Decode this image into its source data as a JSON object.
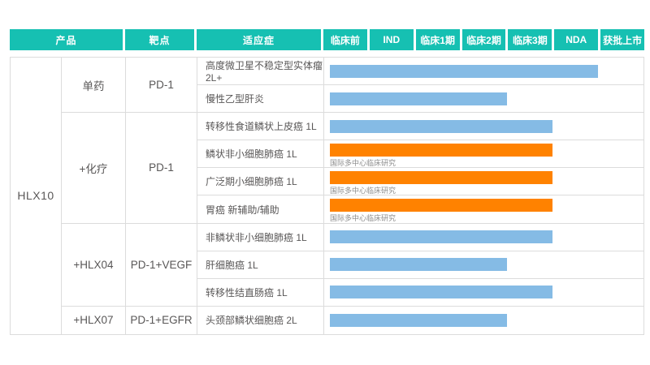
{
  "product": "HLX10",
  "header": {
    "columns": [
      "产品",
      "靶点",
      "适应症"
    ],
    "phases": [
      "临床前",
      "IND",
      "临床1期",
      "临床2期",
      "临床3期",
      "NDA",
      "获批上市"
    ]
  },
  "groups": [
    {
      "combo": "单药",
      "target": "PD-1",
      "span": 2
    },
    {
      "combo": "+化疗",
      "target": "PD-1",
      "span": 4
    },
    {
      "combo": "+HLX04",
      "target": "PD-1+VEGF",
      "span": 3
    },
    {
      "combo": "+HLX07",
      "target": "PD-1+EGFR",
      "span": 1
    }
  ],
  "rows": [
    {
      "indication": "高度微卫星不稳定型实体瘤 2L+",
      "phase_end": "NDA",
      "units": 6,
      "color": "blue",
      "note": ""
    },
    {
      "indication": "慢性乙型肝炎",
      "phase_end": "临床2期",
      "units": 4,
      "color": "blue",
      "note": ""
    },
    {
      "indication": "转移性食道鳞状上皮癌 1L",
      "phase_end": "临床3期",
      "units": 5,
      "color": "blue",
      "note": ""
    },
    {
      "indication": "鳞状非小细胞肺癌 1L",
      "phase_end": "临床3期",
      "units": 5,
      "color": "orange",
      "note": "国际多中心临床研究"
    },
    {
      "indication": "广泛期小细胞肺癌 1L",
      "phase_end": "临床3期",
      "units": 5,
      "color": "orange",
      "note": "国际多中心临床研究"
    },
    {
      "indication": "胃癌 新辅助/辅助",
      "phase_end": "临床3期",
      "units": 5,
      "color": "orange",
      "note": "国际多中心临床研究"
    },
    {
      "indication": "非鳞状非小细胞肺癌 1L",
      "phase_end": "临床3期",
      "units": 5,
      "color": "blue",
      "note": ""
    },
    {
      "indication": "肝细胞癌 1L",
      "phase_end": "临床2期",
      "units": 4,
      "color": "blue",
      "note": ""
    },
    {
      "indication": "转移性结直肠癌 1L",
      "phase_end": "临床3期",
      "units": 5,
      "color": "blue",
      "note": ""
    },
    {
      "indication": "头颈部鳞状细胞癌 2L",
      "phase_end": "临床2期",
      "units": 4,
      "color": "blue",
      "note": ""
    }
  ],
  "colors": {
    "header_bg": "#16C0B2",
    "bar_blue": "#85BBE5",
    "bar_orange": "#FF8200",
    "border": "#DCDCDC",
    "text": "#595757",
    "note_text": "#8C8C8C"
  },
  "chart_data": {
    "type": "bar",
    "layout": "horizontal pipeline gantt; bars start at 临床前 and extend across phase columns",
    "phase_scale": [
      "临床前",
      "IND",
      "临床1期",
      "临床2期",
      "临床3期",
      "NDA",
      "获批上市"
    ],
    "categories": [
      "高度微卫星不稳定型实体瘤 2L+",
      "慢性乙型肝炎",
      "转移性食道鳞状上皮癌 1L",
      "鳞状非小细胞肺癌 1L",
      "广泛期小细胞肺癌 1L",
      "胃癌 新辅助/辅助",
      "非鳞状非小细胞肺癌 1L",
      "肝细胞癌 1L",
      "转移性结直肠癌 1L",
      "头颈部鳞状细胞癌 2L"
    ],
    "values": [
      6,
      4,
      5,
      5,
      5,
      5,
      5,
      4,
      5,
      4
    ],
    "value_meaning": "number of phase columns reached, of 7 (6=NDA, 5=临床3期, 4=临床2期)",
    "series_colors": [
      "blue",
      "blue",
      "blue",
      "orange",
      "orange",
      "orange",
      "blue",
      "blue",
      "blue",
      "blue"
    ],
    "annotations": [
      "",
      "",
      "",
      "国际多中心临床研究",
      "国际多中心临床研究",
      "国际多中心临床研究",
      "",
      "",
      "",
      ""
    ],
    "grid": true,
    "legend": false,
    "title": ""
  }
}
